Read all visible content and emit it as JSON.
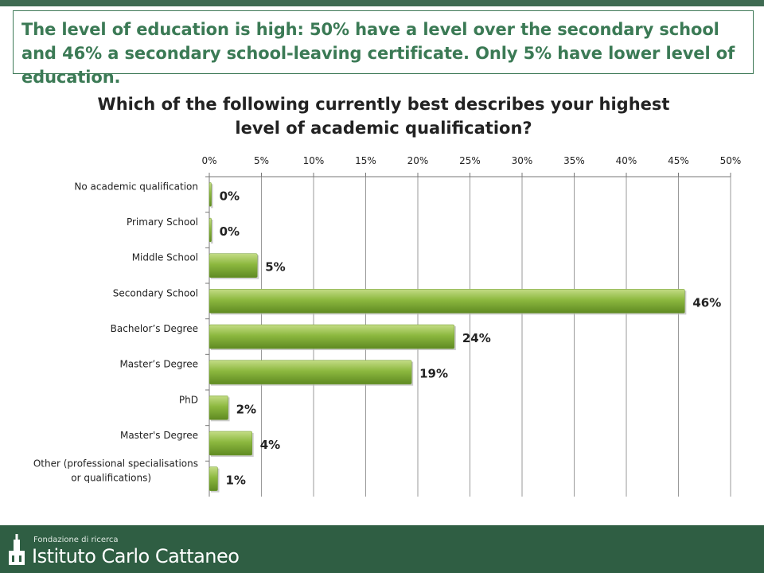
{
  "headline": "The level of education is high: 50% have a level over the secondary school and 46% a secondary school-leaving certificate. Only 5% have lower level of education.",
  "chart_data": {
    "type": "bar",
    "orientation": "horizontal",
    "title": "Which of the following currently best describes your highest level of academic qualification?",
    "categories": [
      "No academic qualification",
      "Primary School",
      "Middle School",
      "Secondary School",
      "Bachelor’s Degree",
      "Master’s Degree",
      "PhD",
      "Master's Degree",
      "Other (professional specialisations or qualifications)"
    ],
    "values": [
      0.2,
      0.2,
      4.6,
      45.6,
      23.5,
      19.4,
      1.8,
      4.1,
      0.8
    ],
    "data_labels": [
      "0%",
      "0%",
      "5%",
      "46%",
      "24%",
      "19%",
      "2%",
      "4%",
      "1%"
    ],
    "x_ticks": [
      "0%",
      "5%",
      "10%",
      "15%",
      "20%",
      "25%",
      "30%",
      "35%",
      "40%",
      "45%",
      "50%"
    ],
    "xlim": [
      0,
      50
    ],
    "xlabel": "",
    "ylabel": "",
    "x_axis_position": "top",
    "grid": true,
    "legend": "none",
    "bar_color": "#8cb83f"
  },
  "footer": {
    "org_line1": "Fondazione di ricerca",
    "org_line2": "Istituto Carlo Cattaneo"
  }
}
